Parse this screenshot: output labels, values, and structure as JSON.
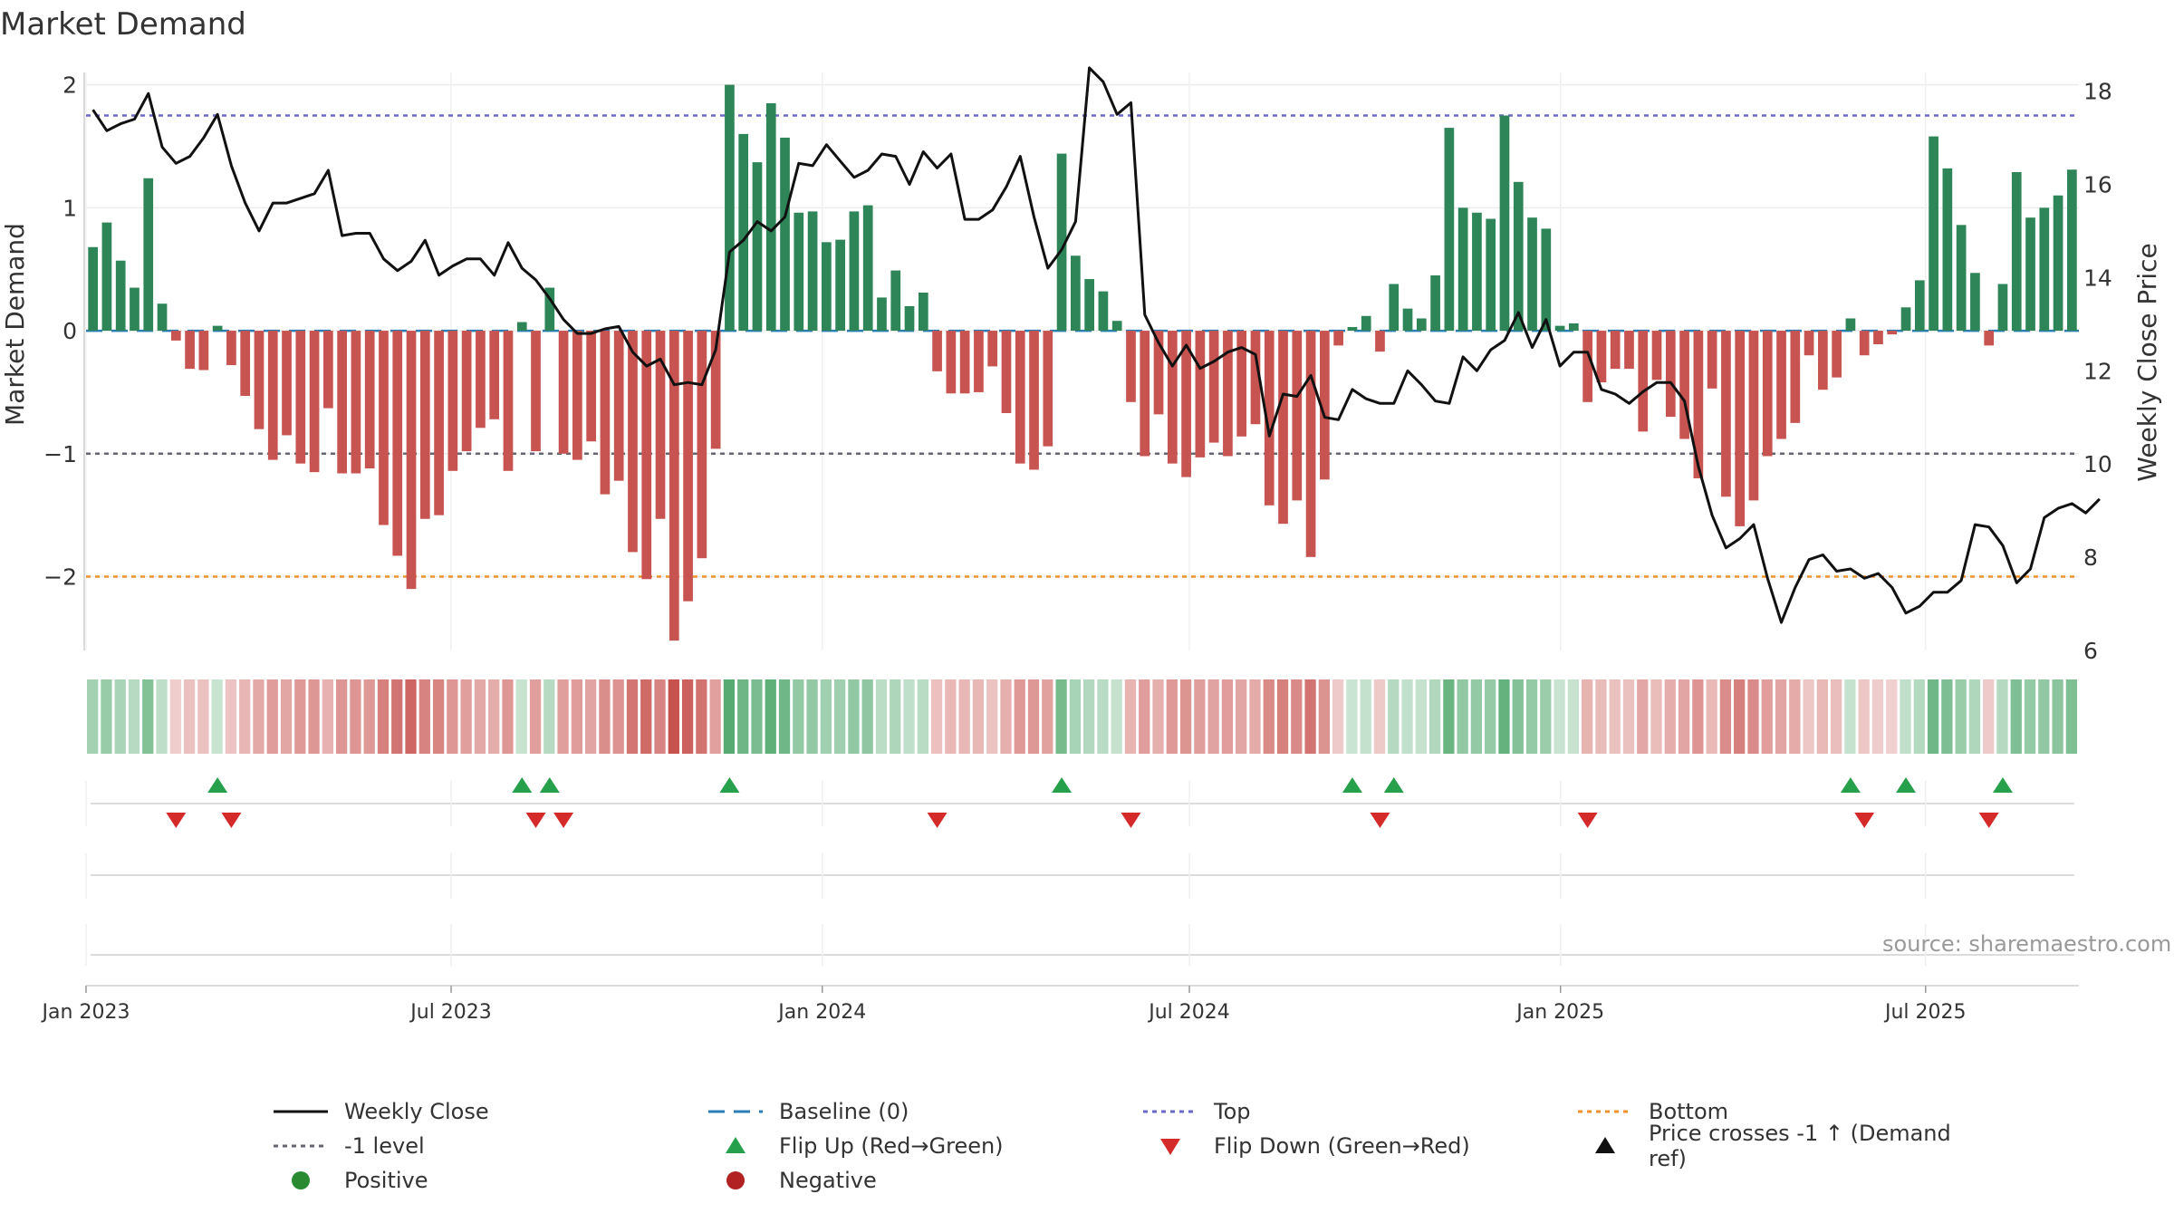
{
  "chart_data": {
    "type": "bar",
    "title": "Market Demand",
    "ylabel_left": "Market Demand",
    "ylabel_right": "Weekly Close Price",
    "ylim_left": [
      -2.6,
      2.1
    ],
    "yticks_left": [
      2,
      1,
      0,
      -1,
      -2
    ],
    "ytick_labels_left": [
      "2",
      "1",
      "0",
      "−1",
      "−2"
    ],
    "ylim_right": [
      6,
      18.4
    ],
    "yticks_right": [
      18,
      16,
      14,
      12,
      10,
      8,
      6
    ],
    "date_start": "2023-01-01",
    "date_end": "2025-09-15",
    "xticks": [
      {
        "date": "2023-01-01",
        "label": "Jan 2023"
      },
      {
        "date": "2023-07-01",
        "label": "Jul 2023"
      },
      {
        "date": "2024-01-01",
        "label": "Jan 2024"
      },
      {
        "date": "2024-07-01",
        "label": "Jul 2024"
      },
      {
        "date": "2025-01-01",
        "label": "Jan 2025"
      },
      {
        "date": "2025-07-01",
        "label": "Jul 2025"
      }
    ],
    "reference_lines": {
      "top": 1.75,
      "minus_one": -1,
      "bottom": -2,
      "baseline": 0
    },
    "demand": [
      0.68,
      0.88,
      0.57,
      0.35,
      1.24,
      0.22,
      -0.08,
      -0.31,
      -0.32,
      0.04,
      -0.28,
      -0.53,
      -0.8,
      -1.05,
      -0.85,
      -1.08,
      -1.15,
      -0.63,
      -1.16,
      -1.16,
      -1.12,
      -1.58,
      -1.83,
      -2.1,
      -1.53,
      -1.5,
      -1.14,
      -0.98,
      -0.79,
      -0.72,
      -1.14,
      0.07,
      -0.98,
      0.35,
      -1.0,
      -1.05,
      -0.9,
      -1.33,
      -1.22,
      -1.8,
      -2.02,
      -1.53,
      -2.52,
      -2.2,
      -1.85,
      -0.96,
      2.0,
      1.6,
      1.37,
      1.85,
      1.57,
      0.96,
      0.97,
      0.72,
      0.74,
      0.97,
      1.02,
      0.27,
      0.49,
      0.2,
      0.31,
      -0.33,
      -0.51,
      -0.51,
      -0.5,
      -0.29,
      -0.67,
      -1.08,
      -1.13,
      -0.94,
      1.44,
      0.61,
      0.42,
      0.32,
      0.08,
      -0.58,
      -1.02,
      -0.68,
      -1.08,
      -1.19,
      -1.03,
      -0.91,
      -1.02,
      -0.86,
      -0.76,
      -1.42,
      -1.57,
      -1.38,
      -1.84,
      -1.21,
      -0.12,
      0.03,
      0.12,
      -0.17,
      0.38,
      0.18,
      0.1,
      0.45,
      1.65,
      1.0,
      0.96,
      0.91,
      1.75,
      1.21,
      0.92,
      0.83,
      0.04,
      0.06,
      -0.58,
      -0.42,
      -0.31,
      -0.31,
      -0.82,
      -0.4,
      -0.7,
      -0.88,
      -1.2,
      -0.47,
      -1.35,
      -1.59,
      -1.38,
      -1.02,
      -0.88,
      -0.75,
      -0.2,
      -0.48,
      -0.38,
      0.1,
      -0.2,
      -0.11,
      -0.03,
      0.19,
      0.41,
      1.58,
      1.32,
      0.86,
      0.47,
      -0.12,
      0.38,
      1.29,
      0.92,
      1.0,
      1.1,
      1.31
    ],
    "close": [
      17.6,
      17.15,
      17.3,
      17.4,
      17.95,
      16.8,
      16.45,
      16.6,
      17.0,
      17.5,
      16.4,
      15.6,
      15.0,
      15.6,
      15.6,
      15.7,
      15.8,
      16.3,
      14.9,
      14.95,
      14.95,
      14.4,
      14.15,
      14.35,
      14.8,
      14.05,
      14.25,
      14.4,
      14.4,
      14.05,
      14.75,
      14.2,
      13.95,
      13.55,
      13.1,
      12.8,
      12.8,
      12.9,
      12.95,
      12.4,
      12.1,
      12.25,
      11.7,
      11.75,
      11.7,
      12.45,
      14.55,
      14.8,
      15.2,
      15.0,
      15.3,
      16.45,
      16.4,
      16.85,
      16.5,
      16.15,
      16.3,
      16.65,
      16.6,
      16.0,
      16.7,
      16.35,
      16.65,
      15.25,
      15.25,
      15.45,
      15.95,
      16.6,
      15.3,
      14.2,
      14.6,
      15.2,
      18.5,
      18.2,
      17.5,
      17.75,
      13.2,
      12.6,
      12.1,
      12.55,
      12.05,
      12.2,
      12.4,
      12.5,
      12.35,
      10.6,
      11.5,
      11.45,
      11.9,
      11.0,
      10.95,
      11.6,
      11.4,
      11.3,
      11.3,
      12.0,
      11.7,
      11.35,
      11.3,
      12.3,
      12.0,
      12.45,
      12.65,
      13.25,
      12.5,
      13.1,
      12.1,
      12.4,
      12.4,
      11.6,
      11.5,
      11.3,
      11.55,
      11.75,
      11.75,
      11.35,
      9.95,
      8.9,
      8.2,
      8.4,
      8.7,
      7.55,
      6.6,
      7.35,
      7.95,
      8.05,
      7.7,
      7.75,
      7.55,
      7.65,
      7.35,
      6.8,
      6.95,
      7.25,
      7.25,
      7.5,
      8.7,
      8.65,
      8.25,
      7.45,
      7.75,
      8.85,
      9.05,
      9.15,
      8.95,
      9.25
    ]
  },
  "legend": {
    "weekly_close": "Weekly Close",
    "baseline": "Baseline (0)",
    "top": "Top",
    "bottom": "Bottom",
    "minus_one_level": "-1 level",
    "flip_up": "Flip Up (Red→Green)",
    "flip_down": "Flip Down (Green→Red)",
    "price_cross": "Price crosses -1 ↑ (Demand ref)",
    "positive": "Positive",
    "negative": "Negative"
  },
  "source": "source: sharemaestro.com",
  "colors": {
    "positive": "#2e8557",
    "negative": "#c75450",
    "flip_up": "#26a04a",
    "flip_down": "#d42a2a",
    "top_line": "#6a68c8",
    "minus_one_line": "#666670",
    "bottom_line": "#f0922b",
    "baseline": "#2a7eb5",
    "close_line": "#111111"
  }
}
